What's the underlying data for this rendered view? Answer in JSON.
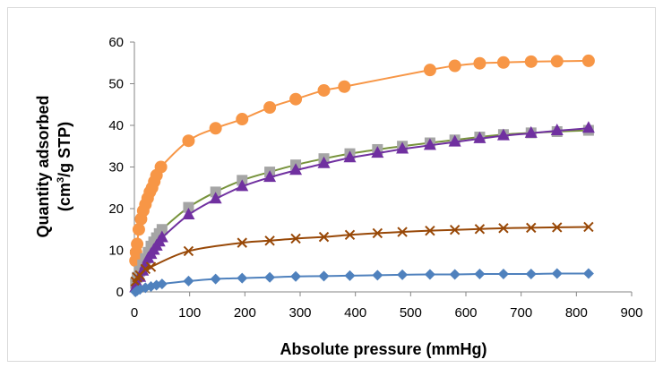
{
  "chart_data": {
    "type": "scatter",
    "title": "",
    "xlabel": "Absolute pressure (mmHg)",
    "ylabel_line1": "Quantity adsorbed",
    "ylabel_line2_prefix": "(cm",
    "ylabel_line2_sup": "3",
    "ylabel_line2_suffix": "/g STP)",
    "xlim": [
      0,
      900
    ],
    "ylim": [
      0,
      60
    ],
    "x_ticks": [
      "0",
      "100",
      "200",
      "300",
      "400",
      "500",
      "600",
      "700",
      "800",
      "900"
    ],
    "y_ticks": [
      "0",
      "10",
      "20",
      "30",
      "40",
      "50",
      "60"
    ],
    "grid": false,
    "legend": "none",
    "series": [
      {
        "color": "#F79646",
        "marker": "circle",
        "x": [
          2,
          3,
          5,
          8,
          12,
          16,
          20,
          24,
          28,
          32,
          36,
          40,
          48,
          98,
          147,
          195,
          245,
          292,
          343,
          380,
          535,
          580,
          625,
          668,
          718,
          765,
          822
        ],
        "y": [
          7.5,
          9.5,
          11.5,
          15,
          17.5,
          19.5,
          21,
          22.5,
          24,
          25,
          26.5,
          28,
          30,
          36.3,
          39.3,
          41.5,
          44.3,
          46.3,
          48.4,
          49.3,
          53.3,
          54.3,
          54.9,
          55.1,
          55.3,
          55.4,
          55.5
        ]
      },
      {
        "color": "#A5A5A5",
        "line_color": "#77933C",
        "marker": "square",
        "x": [
          2,
          5,
          10,
          15,
          20,
          25,
          30,
          35,
          40,
          45,
          50,
          98,
          147,
          195,
          245,
          292,
          343,
          390,
          440,
          485,
          535,
          580,
          625,
          668,
          718,
          765,
          822
        ],
        "y": [
          2,
          3.5,
          5,
          6.5,
          8,
          9.5,
          11,
          12,
          13,
          14,
          15,
          20.3,
          24,
          26.8,
          28.8,
          30.5,
          32,
          33.2,
          34.2,
          35,
          35.8,
          36.5,
          37.2,
          37.8,
          38.2,
          38.5,
          38.8
        ]
      },
      {
        "color": "#7030A0",
        "line_color": "#7030A0",
        "marker": "triangle",
        "x": [
          2,
          5,
          10,
          15,
          20,
          25,
          30,
          35,
          40,
          45,
          50,
          98,
          147,
          195,
          245,
          292,
          343,
          390,
          440,
          485,
          535,
          580,
          625,
          668,
          718,
          765,
          822
        ],
        "y": [
          1,
          2,
          3.5,
          5,
          6.5,
          8,
          9,
          10,
          11,
          12,
          13,
          18.5,
          22.3,
          25.3,
          27.5,
          29.2,
          30.8,
          32.2,
          33.3,
          34.3,
          35.2,
          36,
          36.8,
          37.5,
          38.1,
          38.7,
          39.3
        ]
      },
      {
        "color": "#984807",
        "marker": "x",
        "x": [
          2,
          5,
          10,
          20,
          30,
          98,
          195,
          245,
          292,
          343,
          390,
          440,
          485,
          535,
          580,
          625,
          668,
          718,
          765,
          822
        ],
        "y": [
          2.5,
          3.5,
          4,
          5.5,
          6,
          9.8,
          11.8,
          12.3,
          12.8,
          13.2,
          13.7,
          14.1,
          14.4,
          14.7,
          14.9,
          15.1,
          15.3,
          15.4,
          15.5,
          15.6
        ]
      },
      {
        "color": "#4F81BD",
        "marker": "diamond",
        "x": [
          2,
          5,
          10,
          20,
          30,
          40,
          50,
          98,
          147,
          195,
          245,
          292,
          343,
          390,
          440,
          485,
          535,
          580,
          625,
          668,
          718,
          765,
          822
        ],
        "y": [
          0,
          0.3,
          0.6,
          1,
          1.3,
          1.6,
          1.9,
          2.6,
          3.1,
          3.3,
          3.5,
          3.7,
          3.8,
          3.9,
          4,
          4.1,
          4.2,
          4.2,
          4.3,
          4.3,
          4.3,
          4.4,
          4.4
        ]
      }
    ]
  }
}
